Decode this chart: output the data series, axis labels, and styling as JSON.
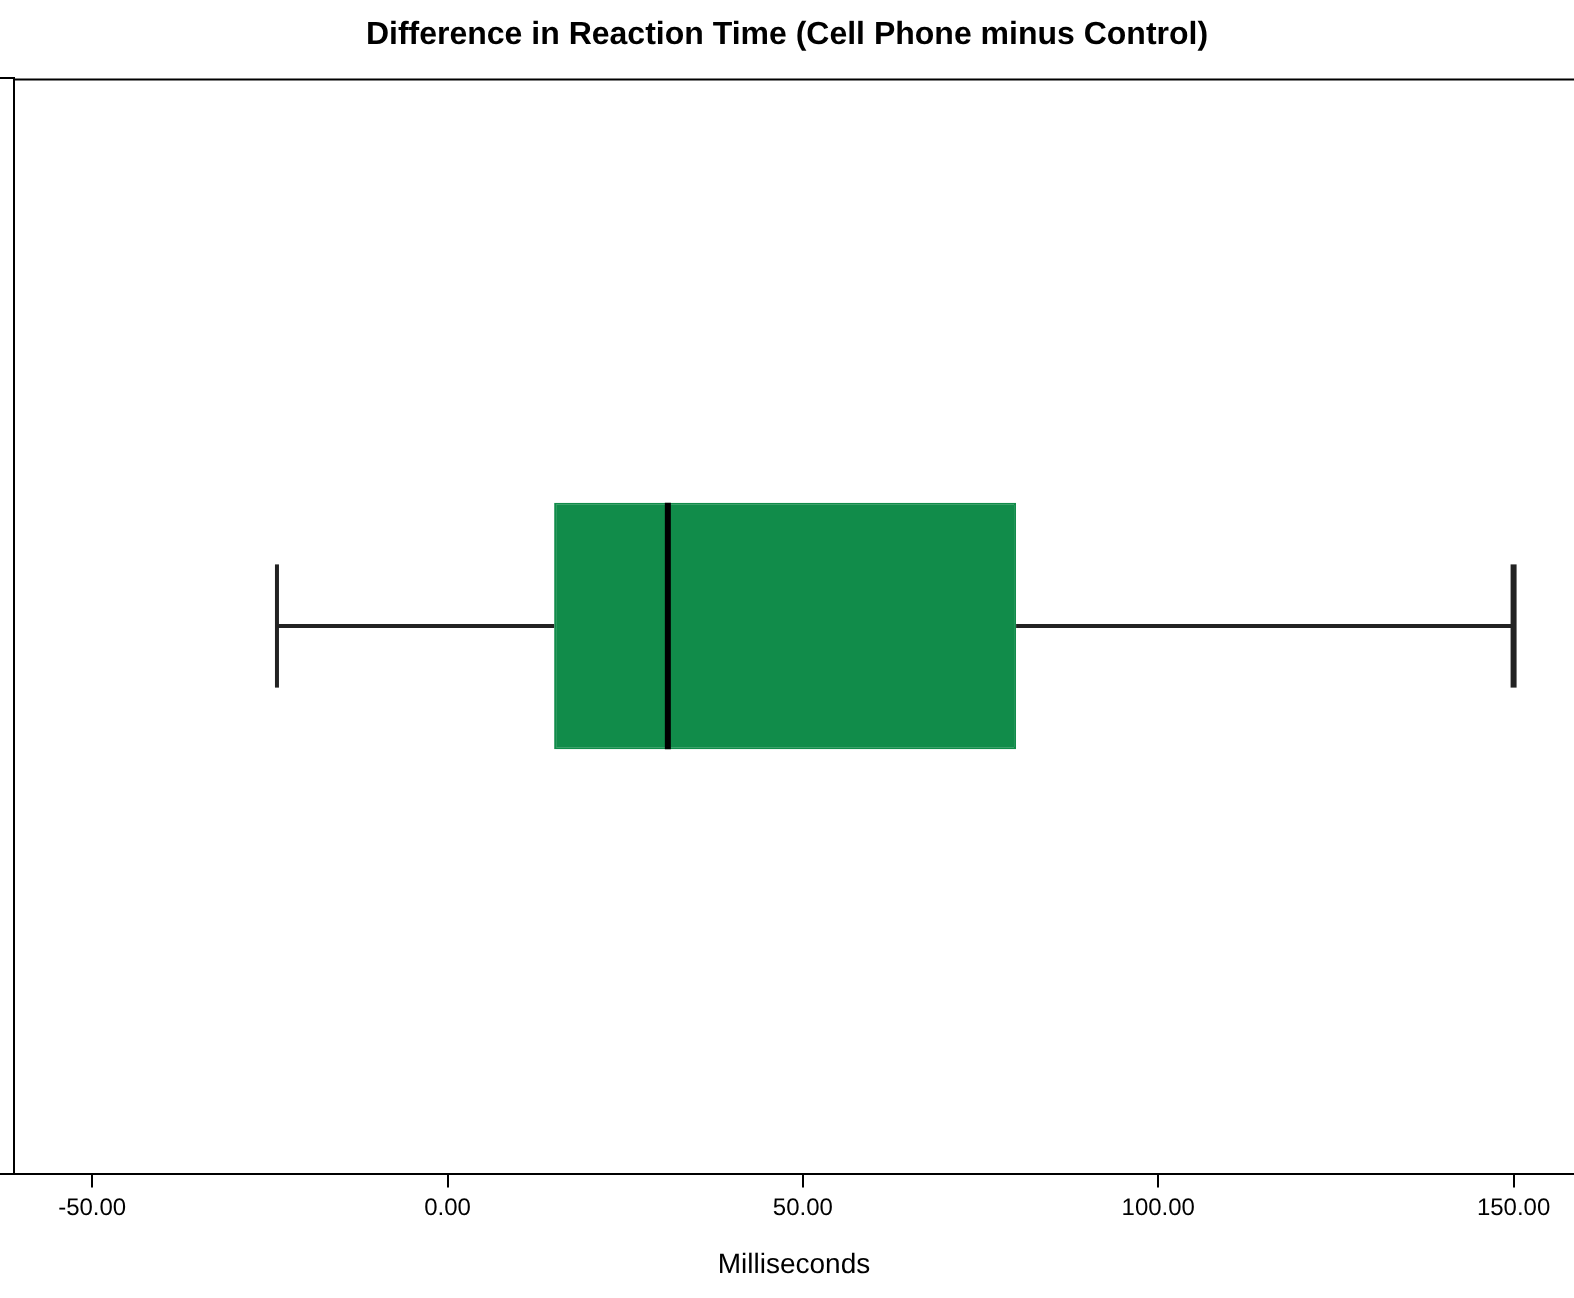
{
  "chart_data": {
    "type": "box",
    "title": "Difference in Reaction Time (Cell Phone minus Control)",
    "xlabel": "Milliseconds",
    "orientation": "horizontal",
    "categories": [
      null
    ],
    "series": [
      {
        "color": "#118c4a",
        "boxes": [
          {
            "low": -24,
            "q1": 15,
            "median": 31,
            "q3": 80,
            "high": 150
          }
        ]
      }
    ],
    "xlim": [
      -61,
      158.5
    ],
    "xticks": [
      {
        "value": -50,
        "label": "-50.00"
      },
      {
        "value": 0,
        "label": "0.00"
      },
      {
        "value": 50,
        "label": "50.00"
      },
      {
        "value": 100,
        "label": "100.00"
      },
      {
        "value": 150,
        "label": "150.00"
      }
    ],
    "grid": false,
    "legend": false
  }
}
